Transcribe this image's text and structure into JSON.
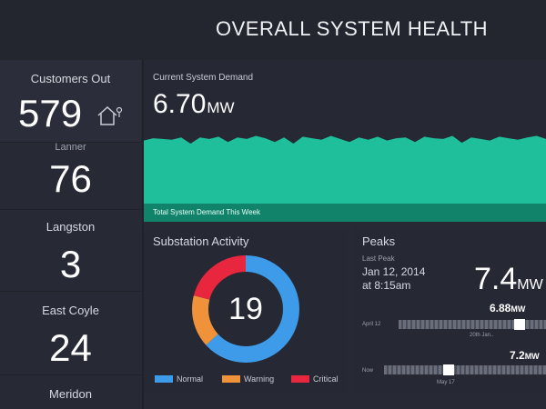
{
  "header": {
    "title": "OVERALL SYSTEM HEALTH"
  },
  "stats": [
    {
      "label": "Customers Out",
      "value": "579"
    },
    {
      "label": "Lanner",
      "value": "76"
    },
    {
      "label": "Langston",
      "value": "3"
    },
    {
      "label": "East Coyle",
      "value": "24"
    },
    {
      "label": "Meridon",
      "value": ""
    }
  ],
  "demand": {
    "title": "Current System Demand",
    "value": "6.70",
    "unit": "MW",
    "caption": "Total System Demand This Week",
    "area_color": "#1fbf9b",
    "chart_data": {
      "type": "area",
      "values": [
        82,
        85,
        84,
        83,
        86,
        78,
        86,
        84,
        87,
        80,
        86,
        84,
        88,
        85,
        80,
        86,
        78,
        87,
        85,
        83,
        88,
        84,
        80,
        86,
        83,
        87,
        82,
        85,
        86,
        80,
        87,
        85,
        84,
        88,
        79,
        86,
        84,
        82,
        87,
        85,
        83,
        86,
        88,
        84
      ],
      "ylim": [
        0,
        100
      ]
    }
  },
  "substation": {
    "title": "Substation Activity",
    "total": "19",
    "chart_data": {
      "type": "pie",
      "labels": [
        "Normal",
        "Warning",
        "Critical"
      ],
      "values": [
        12,
        3,
        4
      ],
      "colors": [
        "#3d9be9",
        "#f0923a",
        "#e8263e"
      ]
    }
  },
  "peaks": {
    "title": "Peaks",
    "subtitle": "Last Peak",
    "date_line1": "Jan 12, 2014",
    "date_line2": "at 8:15am",
    "value": "7.4",
    "unit": "MW",
    "bars": [
      {
        "label": "April 12",
        "value": "6.88",
        "unit": "MW",
        "caption": "20th Jan..",
        "marker_fraction": 0.82
      },
      {
        "label": "Now",
        "value": "7.2",
        "unit": "MW",
        "caption": "May 17",
        "marker_fraction": 0.4
      }
    ]
  }
}
